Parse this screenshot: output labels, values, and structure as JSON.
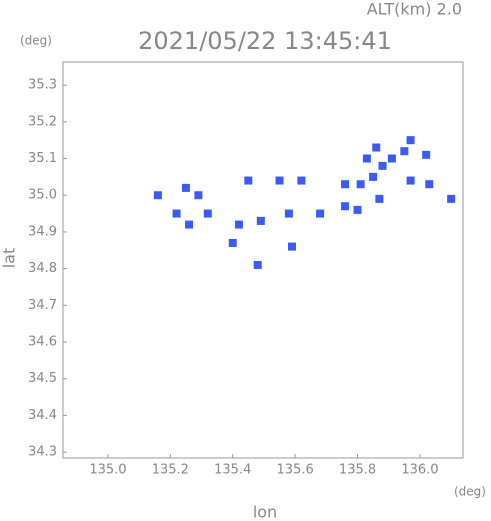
{
  "chart_data": {
    "type": "scatter",
    "title": "2021/05/22 13:45:41",
    "altitude_label": "ALT(km) 2.0",
    "ylabel_unit": "(deg)",
    "xlabel_unit": "(deg)",
    "xlabel": "lon",
    "ylabel": "lat",
    "color": "#3c5af5",
    "xlim": [
      134.856,
      136.138
    ],
    "ylim": [
      34.284,
      35.363
    ],
    "xticks": [
      {
        "value": 135,
        "label": "135.0"
      },
      135.2,
      135.4,
      135.6,
      135.8,
      {
        "value": 136,
        "label": "136.0"
      }
    ],
    "yticks": [
      34.3,
      34.4,
      34.5,
      34.6,
      34.7,
      34.8,
      34.9,
      {
        "value": 35,
        "label": "35.0"
      },
      35.1,
      35.2,
      35.3
    ],
    "x": [
      135.16,
      135.25,
      135.29,
      135.22,
      135.32,
      135.26,
      135.42,
      135.4,
      135.49,
      135.58,
      135.62,
      135.68,
      135.76,
      135.8,
      135.76,
      135.81,
      135.85,
      135.88,
      135.91,
      135.95,
      135.97,
      136.02,
      135.97,
      136.03,
      136.1,
      135.86,
      135.83,
      135.87,
      135.48,
      135.59,
      135.45,
      135.55
    ],
    "y": [
      35.0,
      35.02,
      35.0,
      34.95,
      34.95,
      34.92,
      34.92,
      34.87,
      34.93,
      34.95,
      35.04,
      34.95,
      34.97,
      34.96,
      35.03,
      35.03,
      35.05,
      35.08,
      35.1,
      35.12,
      35.15,
      35.11,
      35.04,
      35.03,
      34.99,
      35.13,
      35.1,
      34.99,
      34.81,
      34.86,
      35.04,
      35.04
    ]
  }
}
